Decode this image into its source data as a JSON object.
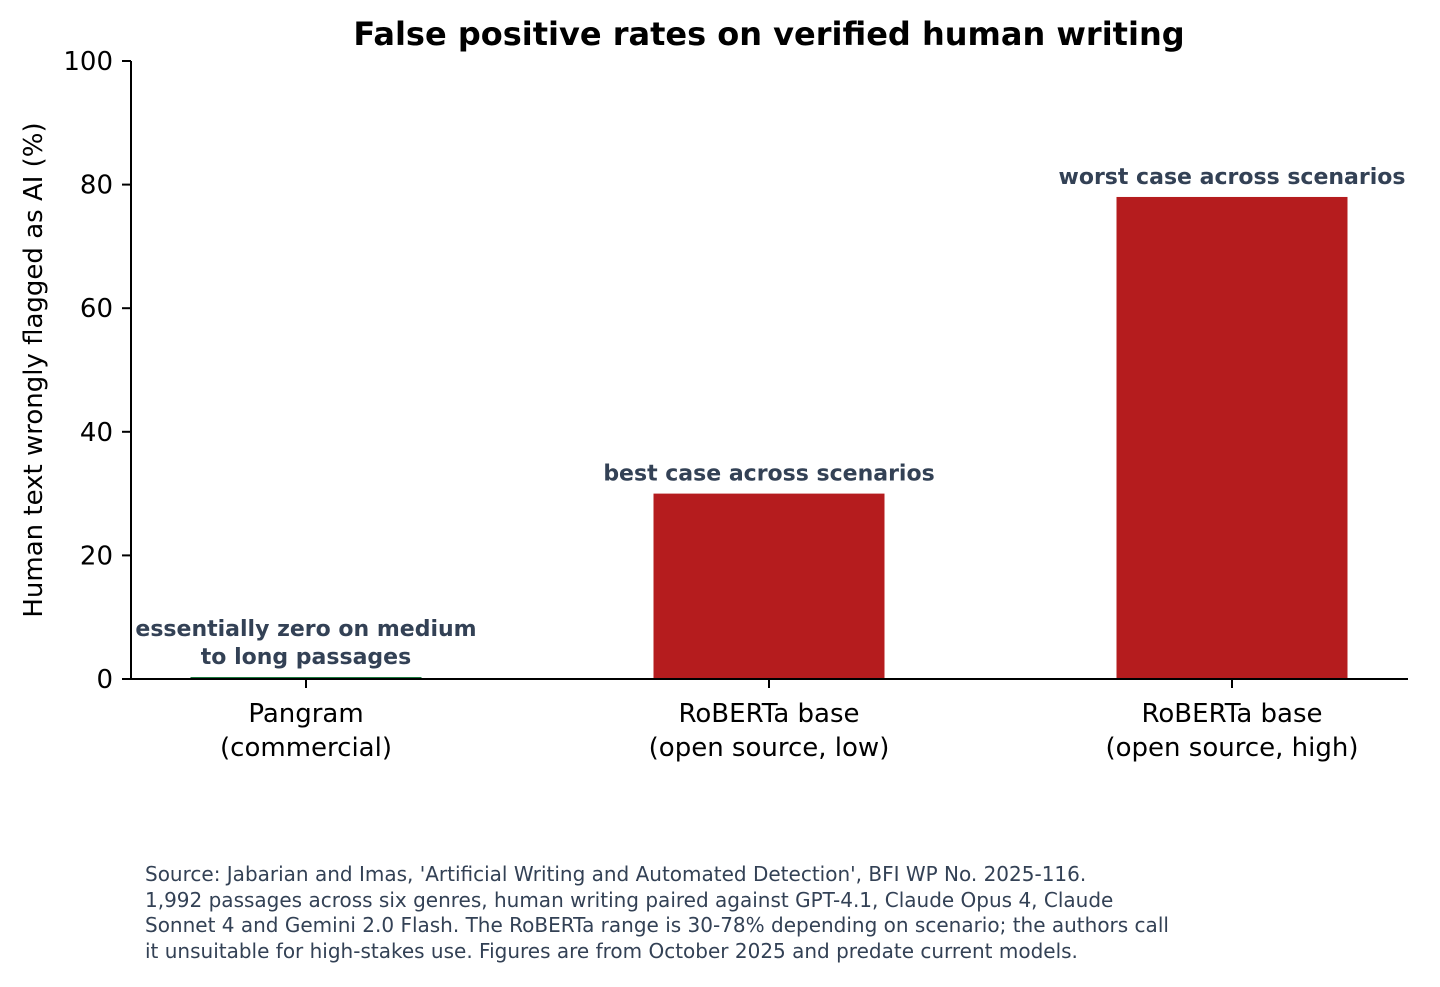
{
  "chart_data": {
    "type": "bar",
    "title": "False positive rates on verified human writing",
    "ylabel": "Human text wrongly flagged as AI (%)",
    "xlabel": "",
    "ylim": [
      0,
      100
    ],
    "yticks": [
      0,
      20,
      40,
      60,
      80,
      100
    ],
    "grid": false,
    "categories": [
      [
        "Pangram",
        "(commercial)"
      ],
      [
        "RoBERTa base",
        "(open source, low)"
      ],
      [
        "RoBERTa base",
        "(open source, high)"
      ]
    ],
    "values": [
      0.3,
      30,
      78
    ],
    "colors": [
      "#1b7a3e",
      "#b51c1e",
      "#b51c1e"
    ],
    "annotations": [
      [
        "essentially zero on medium",
        "to long passages"
      ],
      [
        "best case across scenarios"
      ],
      [
        "worst case across scenarios"
      ]
    ],
    "annotation_color": "#334155"
  },
  "source_note": [
    "Source: Jabarian and Imas, 'Artificial Writing and Automated Detection', BFI WP No. 2025-116.",
    "1,992 passages across six genres, human writing paired against GPT-4.1, Claude Opus 4, Claude",
    "Sonnet 4 and Gemini 2.0 Flash. The RoBERTa range is 30-78% depending on scenario; the authors call",
    "it unsuitable for high-stakes use. Figures are from October 2025 and predate current models."
  ]
}
